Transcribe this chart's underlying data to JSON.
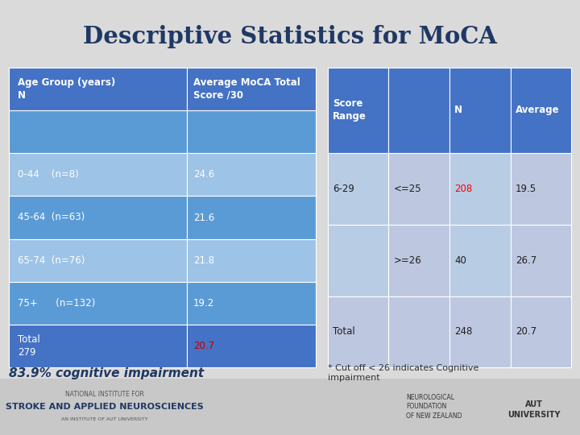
{
  "title": "Descriptive Statistics for MoCA",
  "title_color": "#1F3864",
  "bg_color": "#DADADA",
  "footer_bg": "#C8C8C8",
  "left_table": {
    "header_row": [
      "Age Group (years)\nN",
      "Average MoCA Total\nScore /30"
    ],
    "data_rows": [
      [
        "",
        ""
      ],
      [
        "0-44    (n=8)",
        "24.6"
      ],
      [
        "45-64  (n=63)",
        "21.6"
      ],
      [
        "65-74  (n=76)",
        "21.8"
      ],
      [
        "75+      (n=132)",
        "19.2"
      ],
      [
        "Total\n279",
        "20.7"
      ]
    ],
    "row_colors": [
      [
        "#4472C4",
        "#4472C4"
      ],
      [
        "#5B9BD5",
        "#5B9BD5"
      ],
      [
        "#9DC3E6",
        "#9DC3E6"
      ],
      [
        "#5B9BD5",
        "#5B9BD5"
      ],
      [
        "#9DC3E6",
        "#9DC3E6"
      ],
      [
        "#5B9BD5",
        "#5B9BD5"
      ],
      [
        "#4472C4",
        "#4472C4"
      ]
    ],
    "total_value_color": "#C00000",
    "header_color": "#2E75B6"
  },
  "right_table": {
    "header_row": [
      "Score\nRange",
      "",
      "N",
      "Average"
    ],
    "data_rows": [
      [
        "6-29",
        "<=25",
        "208",
        "19.5"
      ],
      [
        "",
        ">=26",
        "40",
        "26.7"
      ],
      [
        "Total",
        "",
        "248",
        "20.7"
      ]
    ],
    "row1_colors": [
      "#B8CCE4",
      "#BDC7E0",
      "#B8CCE4",
      "#BDC7E0"
    ],
    "row2_colors": [
      "#B8CCE4",
      "#BDC7E0",
      "#B8CCE4",
      "#BDC7E0"
    ],
    "row3_colors": [
      "#BDC7E0",
      "#BDC7E0",
      "#BDC7E0",
      "#BDC7E0"
    ],
    "n_208_color": "#FF0000",
    "header_color": "#4472C4",
    "data_text_color": "#1F1F1F"
  },
  "annotation_left": "83.9% cognitive impairment",
  "annotation_left_color": "#1F3864",
  "annotation_right": "* Cut off < 26 indicates Cognitive\nimpairment",
  "annotation_right_color": "#333333"
}
